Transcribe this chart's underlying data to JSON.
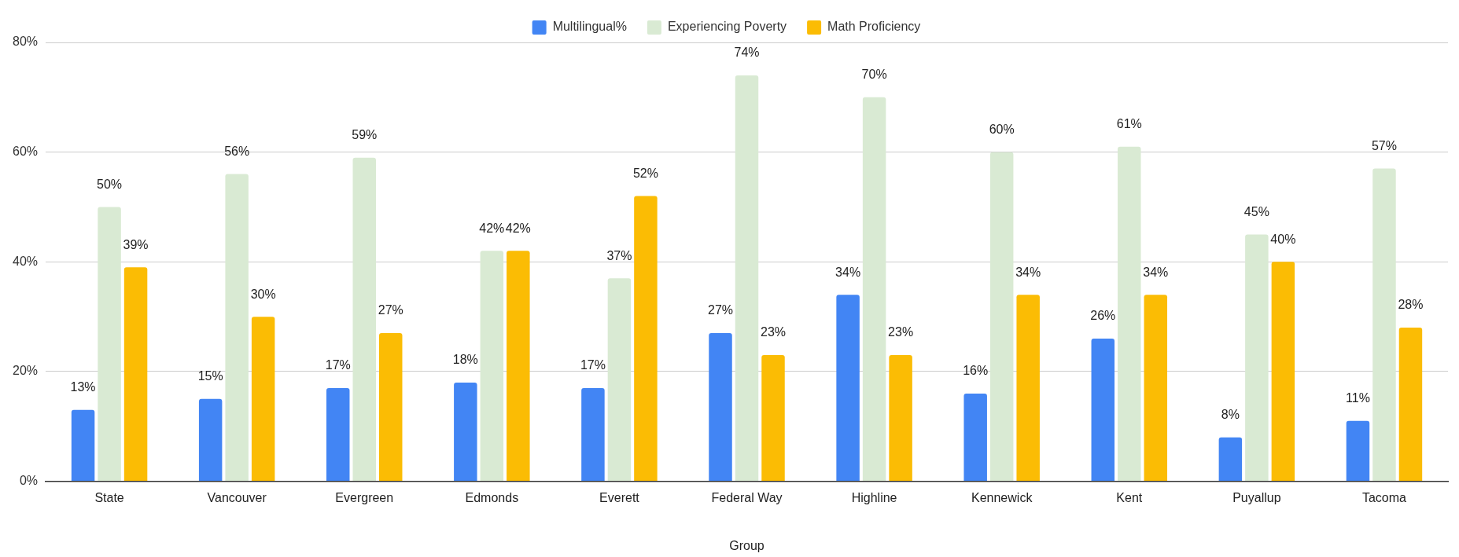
{
  "chart_data": {
    "type": "bar",
    "categories": [
      "State",
      "Vancouver",
      "Evergreen",
      "Edmonds",
      "Everett",
      "Federal Way",
      "Highline",
      "Kennewick",
      "Kent",
      "Puyallup",
      "Tacoma"
    ],
    "series": [
      {
        "name": "Multilingual%",
        "color": "#4285f4",
        "values": [
          13,
          15,
          17,
          18,
          17,
          27,
          34,
          16,
          26,
          8,
          11
        ],
        "value_labels": [
          "13%",
          "15%",
          "17%",
          "18%",
          "17%",
          "27%",
          "34%",
          "16%",
          "26%",
          "8%",
          "11%"
        ]
      },
      {
        "name": "Experiencing Poverty",
        "color": "#d9ead3",
        "values": [
          50,
          56,
          59,
          42,
          37,
          74,
          70,
          60,
          61,
          45,
          57
        ],
        "value_labels": [
          "50%",
          "56%",
          "59%",
          "42%",
          "37%",
          "74%",
          "70%",
          "60%",
          "61%",
          "45%",
          "57%"
        ]
      },
      {
        "name": "Math Proficiency",
        "color": "#fbbc04",
        "values": [
          39,
          30,
          27,
          42,
          52,
          23,
          23,
          34,
          34,
          40,
          28
        ],
        "value_labels": [
          "39%",
          "30%",
          "27%",
          "42%",
          "52%",
          "23%",
          "23%",
          "34%",
          "34%",
          "40%",
          "28%"
        ]
      }
    ],
    "xlabel": "Group",
    "ylim": [
      0,
      80
    ],
    "yticks": [
      {
        "value": 0,
        "label": "0%"
      },
      {
        "value": 20,
        "label": "20%"
      },
      {
        "value": 40,
        "label": "40%"
      },
      {
        "value": 60,
        "label": "60%"
      },
      {
        "value": 80,
        "label": "80%"
      }
    ],
    "grid": "y",
    "legend": "top"
  }
}
